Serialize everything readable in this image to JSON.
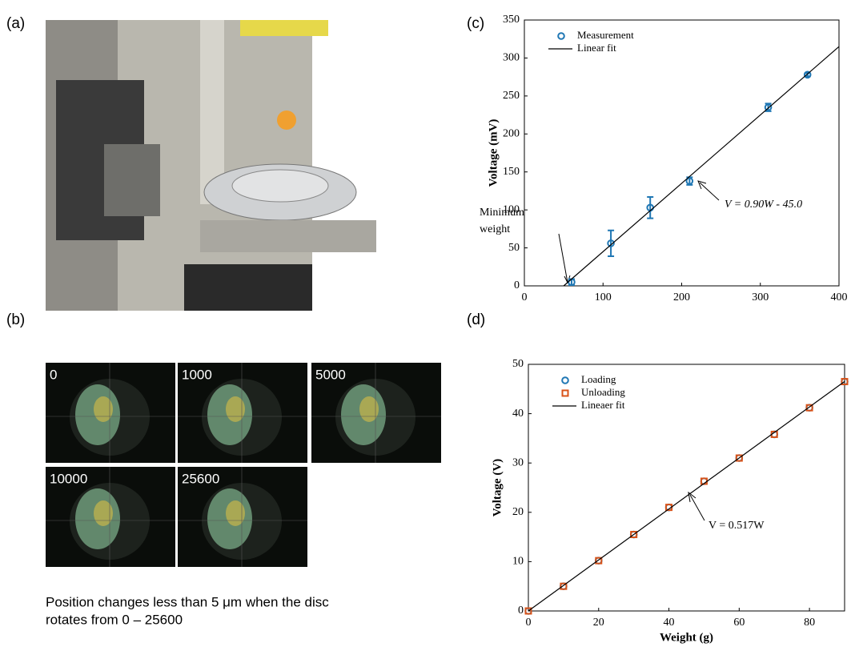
{
  "panel_labels": [
    "(a)",
    "(b)",
    "(c)",
    "(d)"
  ],
  "micrograph_labels": [
    "0",
    "1000",
    "5000",
    "10000",
    "25600"
  ],
  "caption": [
    "Position changes less than 5 μm when the disc",
    "rotates from 0 – 25600"
  ],
  "chart_data": [
    {
      "type": "scatter",
      "ylabel": "Voltage (mV)",
      "xlim": [
        0,
        400
      ],
      "xticks": [
        0,
        100,
        200,
        300,
        400
      ],
      "ylim": [
        0,
        350
      ],
      "yticks": [
        0,
        50,
        100,
        150,
        200,
        250,
        300,
        350
      ],
      "legend": "upper left",
      "annotations": [
        "V = 0.90W - 45.0",
        "Minimum",
        "weight"
      ],
      "series": [
        {
          "name": "Measurement",
          "color": "#1f77b4",
          "marker": "circle",
          "x": [
            60,
            110,
            160,
            210,
            310,
            360
          ],
          "values": [
            5,
            56,
            103,
            138,
            235,
            278
          ],
          "errors": [
            4,
            17,
            14,
            5,
            5,
            2
          ]
        },
        {
          "name": "Linear fit",
          "color": "#000000",
          "marker": "line",
          "x": [
            50,
            400
          ],
          "values": [
            0,
            315
          ]
        }
      ]
    },
    {
      "type": "scatter",
      "xlabel": "Weight (g)",
      "ylabel": "Voltage (V)",
      "xlim": [
        0,
        90
      ],
      "xticks": [
        0,
        20,
        40,
        60,
        80
      ],
      "ylim": [
        0,
        50
      ],
      "yticks": [
        0,
        10,
        20,
        30,
        40,
        50
      ],
      "legend": "upper left",
      "annotations": [
        "V = 0.517W"
      ],
      "series": [
        {
          "name": "Loading",
          "color": "#1f77b4",
          "marker": "circle",
          "x": [
            0,
            10,
            20,
            30,
            40,
            50,
            60,
            70,
            80,
            90
          ],
          "values": [
            0,
            5,
            10.2,
            15.5,
            21,
            26.3,
            31,
            35.8,
            41.2,
            46.5
          ]
        },
        {
          "name": "Unloading",
          "color": "#d95319",
          "marker": "square",
          "x": [
            0,
            10,
            20,
            30,
            40,
            50,
            60,
            70,
            80,
            90
          ],
          "values": [
            0,
            5,
            10.2,
            15.5,
            21,
            26.3,
            31,
            35.8,
            41.2,
            46.5
          ]
        },
        {
          "name": "Lineaer fit",
          "color": "#000000",
          "marker": "line",
          "x": [
            0,
            90
          ],
          "values": [
            0,
            46.53
          ]
        }
      ]
    }
  ]
}
